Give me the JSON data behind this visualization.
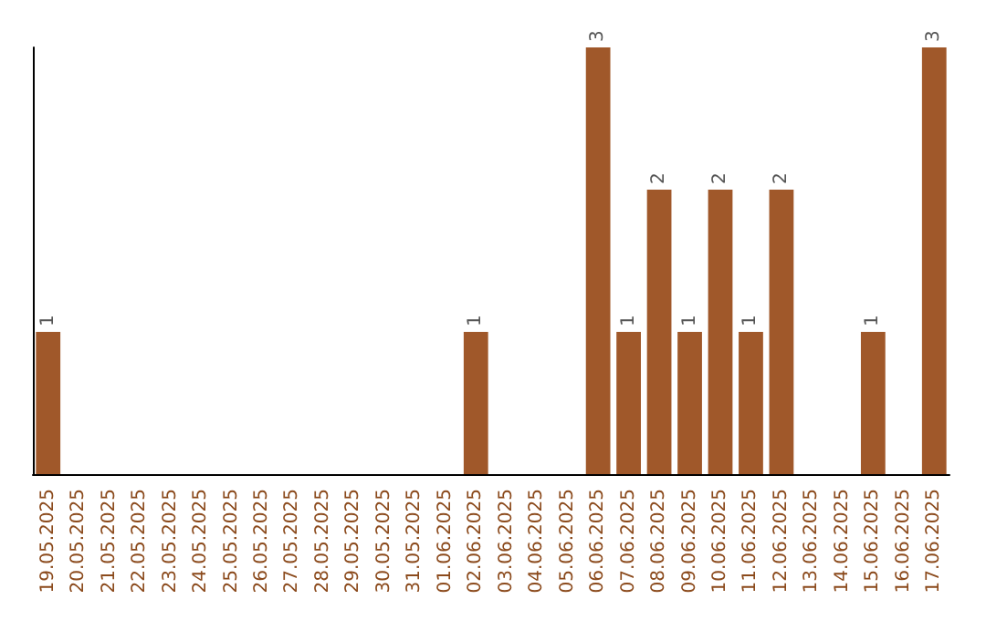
{
  "chart_data": {
    "type": "bar",
    "categories": [
      "19.05.2025",
      "20.05.2025",
      "21.05.2025",
      "22.05.2025",
      "23.05.2025",
      "24.05.2025",
      "25.05.2025",
      "26.05.2025",
      "27.05.2025",
      "28.05.2025",
      "29.05.2025",
      "30.05.2025",
      "31.05.2025",
      "01.06.2025",
      "02.06.2025",
      "03.06.2025",
      "04.06.2025",
      "05.06.2025",
      "06.06.2025",
      "07.06.2025",
      "08.06.2025",
      "09.06.2025",
      "10.06.2025",
      "11.06.2025",
      "12.06.2025",
      "13.06.2025",
      "14.06.2025",
      "15.06.2025",
      "16.06.2025",
      "17.06.2025"
    ],
    "values": [
      1,
      0,
      0,
      0,
      0,
      0,
      0,
      0,
      0,
      0,
      0,
      0,
      0,
      0,
      1,
      0,
      0,
      0,
      3,
      1,
      2,
      1,
      2,
      1,
      2,
      0,
      0,
      1,
      0,
      3
    ],
    "value_labels": [
      "1",
      null,
      null,
      null,
      null,
      null,
      null,
      null,
      null,
      null,
      null,
      null,
      null,
      null,
      "1",
      null,
      null,
      null,
      "3",
      "1",
      "2",
      "1",
      "2",
      "1",
      "2",
      null,
      null,
      "1",
      null,
      "3"
    ],
    "color": "#a0582a",
    "grid": false
  }
}
